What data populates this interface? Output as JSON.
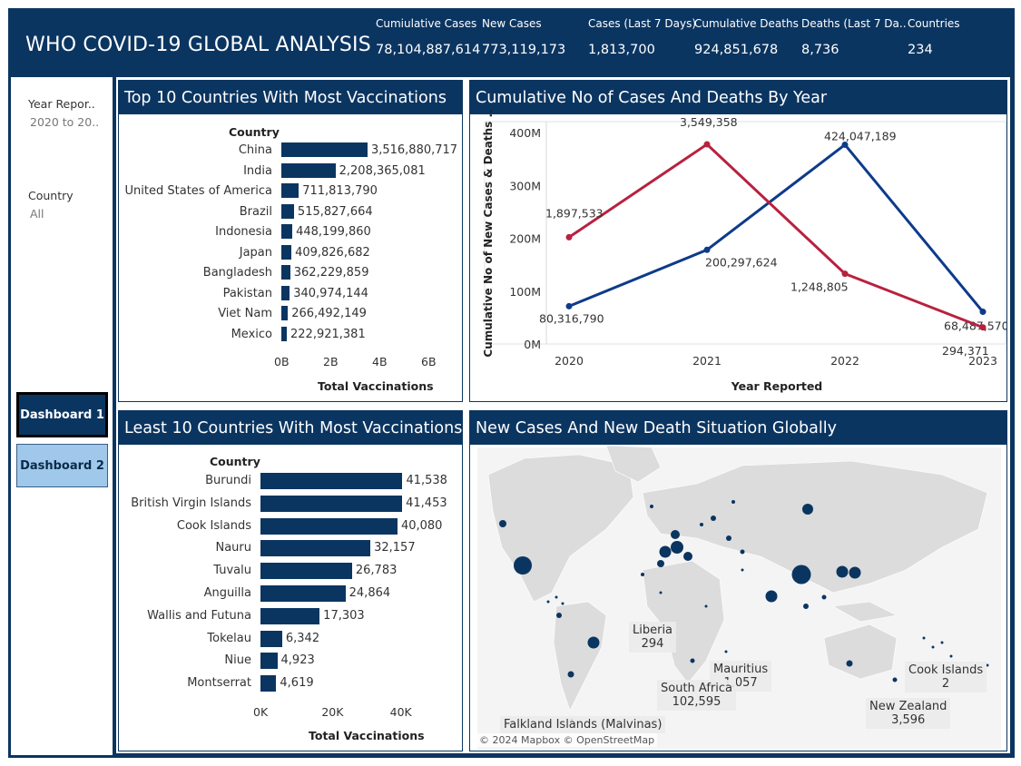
{
  "header": {
    "title": "WHO COVID-19 GLOBAL ANALYSIS",
    "kpis": [
      {
        "label": "Cumiulative Cases",
        "value": "78,104,887,614"
      },
      {
        "label": "New Cases",
        "value": "773,119,173"
      },
      {
        "label": "Cases (Last 7 Days)",
        "value": "1,813,700"
      },
      {
        "label": "Cumulative Deaths",
        "value": "924,851,678"
      },
      {
        "label": "Deaths (Last 7 Da..",
        "value": "8,736"
      },
      {
        "label": "Countries",
        "value": "234"
      }
    ]
  },
  "filters": {
    "year": {
      "title": "Year Repor..",
      "value": "2020 to 20.."
    },
    "country": {
      "title": "Country",
      "value": "All"
    }
  },
  "nav": {
    "dashboard1": "Dashboard 1",
    "dashboard2": "Dashboard 2"
  },
  "colors": {
    "navy": "#0b3561",
    "cases_line": "#0d3b8a",
    "deaths_line": "#b8213f",
    "nav_inactive": "#9fc8ea"
  },
  "top10": {
    "title": "Top 10 Countries With Most Vaccinations",
    "column_header": "Country",
    "xlabel": "Total Vaccinations",
    "ticks": [
      "0B",
      "2B",
      "4B",
      "6B"
    ]
  },
  "least10": {
    "title": "Least 10 Countries With Most Vaccinations",
    "column_header": "Country",
    "xlabel": "Total Vaccinations",
    "ticks": [
      "0K",
      "20K",
      "40K"
    ]
  },
  "line": {
    "title": "Cumulative No of Cases And Deaths By Year",
    "ylabel": "Cumulative No of New Cases & Deaths ..",
    "xlabel": "Year Reported",
    "yticks": [
      "400M",
      "300M",
      "200M",
      "100M",
      "0M"
    ],
    "xticks": [
      "2020",
      "2021",
      "2022",
      "2023"
    ]
  },
  "map": {
    "title": "New Cases And New Death Situation Globally",
    "labels": [
      {
        "name": "Liberia",
        "value": "294"
      },
      {
        "name": "Mauritius",
        "value": "1,057"
      },
      {
        "name": "South Africa",
        "value": "102,595"
      },
      {
        "name": "Cook Islands",
        "value": "2"
      },
      {
        "name": "New Zealand",
        "value": "3,596"
      },
      {
        "name": "Falkland Islands (Malvinas)",
        "value": ""
      }
    ],
    "copyright": "© 2024 Mapbox © OpenStreetMap"
  },
  "chart_data": [
    {
      "type": "bar",
      "title": "Top 10 Countries With Most Vaccinations",
      "xlabel": "Total Vaccinations",
      "ylabel": "Country",
      "categories": [
        "China",
        "India",
        "United States of America",
        "Brazil",
        "Indonesia",
        "Japan",
        "Bangladesh",
        "Pakistan",
        "Viet Nam",
        "Mexico"
      ],
      "values": [
        3516880717,
        2208365081,
        711813790,
        515827664,
        448199860,
        409826682,
        362229859,
        340974144,
        266492149,
        222921381
      ],
      "value_labels": [
        "3,516,880,717",
        "2,208,365,081",
        "711,813,790",
        "515,827,664",
        "448,199,860",
        "409,826,682",
        "362,229,859",
        "340,974,144",
        "266,492,149",
        "222,921,381"
      ],
      "xlim": [
        0,
        7000000000
      ]
    },
    {
      "type": "bar",
      "title": "Least 10 Countries With Most Vaccinations",
      "xlabel": "Total Vaccinations",
      "ylabel": "Country",
      "categories": [
        "Burundi",
        "British Virgin Islands",
        "Cook Islands",
        "Nauru",
        "Tuvalu",
        "Anguilla",
        "Wallis and Futuna",
        "Tokelau",
        "Niue",
        "Montserrat"
      ],
      "values": [
        41538,
        41453,
        40080,
        32157,
        26783,
        24864,
        17303,
        6342,
        4923,
        4619
      ],
      "value_labels": [
        "41,538",
        "41,453",
        "40,080",
        "32,157",
        "26,783",
        "24,864",
        "17,303",
        "6,342",
        "4,923",
        "4,619"
      ],
      "xlim": [
        0,
        60000
      ]
    },
    {
      "type": "line",
      "title": "Cumulative No of Cases And Deaths By Year",
      "xlabel": "Year Reported",
      "ylabel": "Cumulative No of New Cases & Deaths ..",
      "x": [
        "2020",
        "2021",
        "2022",
        "2023"
      ],
      "ylim": [
        0,
        450000000
      ],
      "series": [
        {
          "values": [
            80316790,
            200297624,
            424047189,
            68487570
          ],
          "labels": [
            "80,316,790",
            "200,297,624",
            "424,047,189",
            "68,487,570"
          ],
          "color": "#0d3b8a"
        },
        {
          "values": [
            1897533,
            3549358,
            1248805,
            294371
          ],
          "labels": [
            "1,897,533",
            "3,549,358",
            "1,248,805",
            "294,371"
          ],
          "color": "#b8213f"
        }
      ]
    }
  ]
}
